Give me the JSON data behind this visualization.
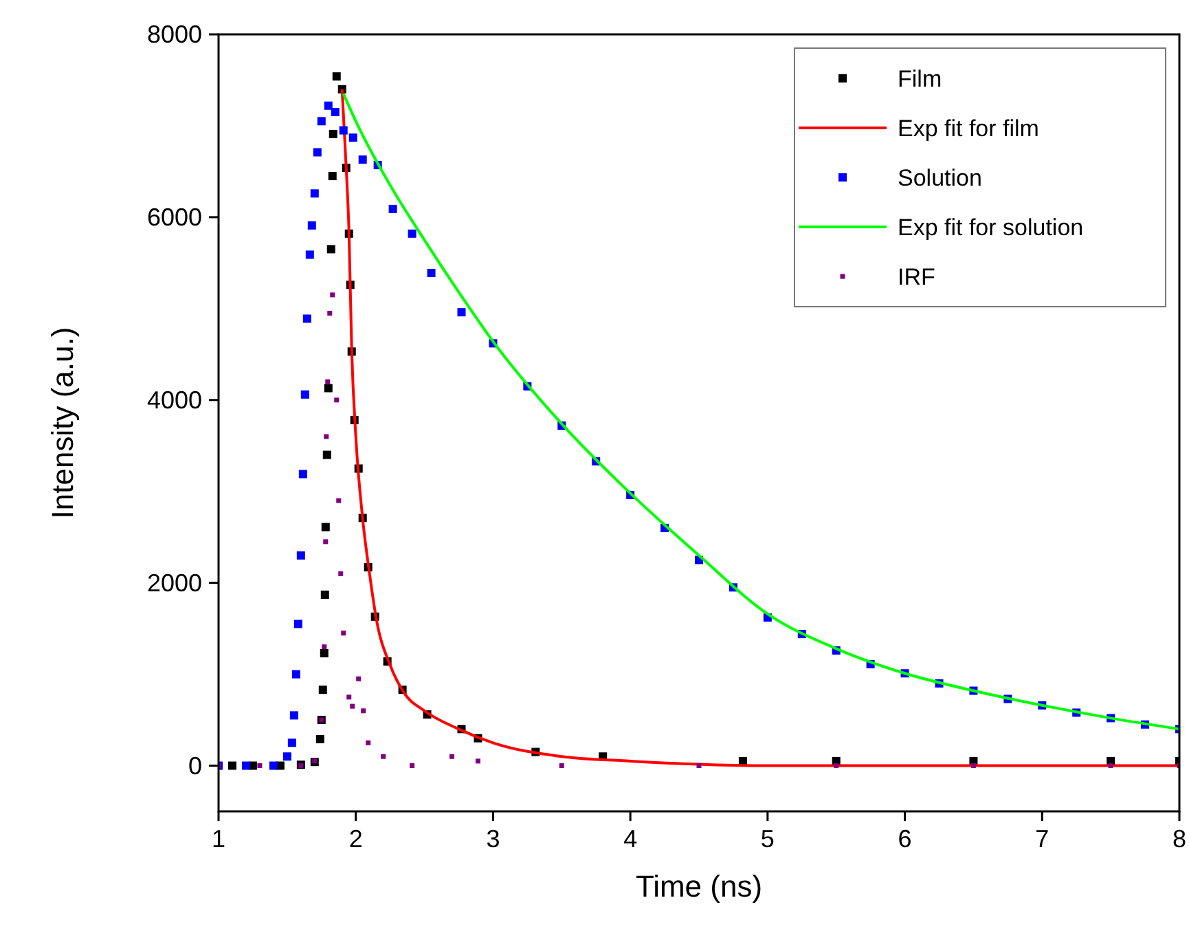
{
  "chart_data": {
    "type": "scatter",
    "xlabel": "Time (ns)",
    "ylabel": "Intensity (a.u.)",
    "xlim": [
      1,
      8
    ],
    "ylim": [
      -500,
      8000
    ],
    "xticks": [
      1,
      2,
      3,
      4,
      5,
      6,
      7,
      8
    ],
    "yticks": [
      0,
      2000,
      4000,
      6000,
      8000
    ],
    "grid": false,
    "legend": "top right",
    "series": [
      {
        "name": "Film",
        "marker": "square",
        "color": "#000000",
        "x": [
          1.1,
          1.25,
          1.45,
          1.6,
          1.7,
          1.74,
          1.75,
          1.76,
          1.77,
          1.775,
          1.78,
          1.79,
          1.8,
          1.82,
          1.83,
          1.835,
          1.86,
          1.9,
          1.93,
          1.95,
          1.96,
          1.97,
          1.99,
          2.02,
          2.05,
          2.09,
          2.14,
          2.23,
          2.34,
          2.52,
          2.77,
          2.89,
          3.31,
          3.8,
          4.82,
          5.5,
          6.5,
          7.5,
          8
        ],
        "values": [
          0,
          0,
          0,
          10,
          40,
          290,
          500,
          830,
          1230,
          1870,
          2610,
          3400,
          4130,
          5650,
          6450,
          6910,
          7540,
          7400,
          6540,
          5820,
          5260,
          4530,
          3780,
          3250,
          2710,
          2170,
          1630,
          1140,
          830,
          560,
          400,
          300,
          150,
          100,
          50,
          50,
          50,
          50,
          50
        ]
      },
      {
        "name": "Exp fit for film",
        "type": "line",
        "color": "#ff0000",
        "x": [
          1.9,
          1.93,
          1.95,
          1.97,
          2.0,
          2.05,
          2.1,
          2.15,
          2.25,
          2.35,
          2.5,
          2.75,
          3,
          3.5,
          4,
          5,
          6,
          8
        ],
        "values": [
          7400,
          6540,
          5850,
          4550,
          3600,
          2700,
          2100,
          1600,
          1100,
          800,
          600,
          400,
          250,
          100,
          50,
          0,
          0,
          0
        ]
      },
      {
        "name": "Solution",
        "marker": "square",
        "color": "#0000ff",
        "x": [
          1,
          1.2,
          1.4,
          1.5,
          1.535,
          1.55,
          1.565,
          1.58,
          1.6,
          1.615,
          1.63,
          1.645,
          1.665,
          1.68,
          1.7,
          1.72,
          1.75,
          1.8,
          1.85,
          1.91,
          1.98,
          2.05,
          2.16,
          2.27,
          2.41,
          2.55,
          2.77,
          3,
          3.25,
          3.5,
          3.75,
          4,
          4.25,
          4.5,
          4.75,
          5,
          5.25,
          5.5,
          5.75,
          6,
          6.25,
          6.5,
          6.75,
          7,
          7.25,
          7.5,
          7.75,
          8
        ],
        "values": [
          0,
          0,
          0,
          100,
          250,
          550,
          1000,
          1550,
          2300,
          3190,
          4060,
          4890,
          5590,
          5910,
          6260,
          6710,
          7050,
          7220,
          7150,
          6950,
          6870,
          6630,
          6570,
          6090,
          5820,
          5390,
          4960,
          4620,
          4150,
          3720,
          3330,
          2960,
          2600,
          2250,
          1950,
          1620,
          1440,
          1260,
          1110,
          1010,
          900,
          820,
          730,
          660,
          580,
          520,
          450,
          400
        ]
      },
      {
        "name": "Exp fit for solution",
        "type": "line",
        "color": "#00ff00",
        "x": [
          1.91,
          2,
          2.25,
          2.5,
          2.75,
          3,
          3.5,
          4,
          4.5,
          5,
          5.5,
          6,
          6.5,
          7,
          7.5,
          8
        ],
        "values": [
          7350,
          7050,
          6350,
          5750,
          5180,
          4640,
          3740,
          2980,
          2300,
          1660,
          1280,
          1010,
          820,
          660,
          520,
          400
        ]
      },
      {
        "name": "IRF",
        "marker": "square",
        "color": "#800080",
        "x": [
          1,
          1.3,
          1.6,
          1.7,
          1.75,
          1.77,
          1.78,
          1.785,
          1.795,
          1.81,
          1.83,
          1.86,
          1.875,
          1.89,
          1.91,
          1.95,
          1.975,
          2.02,
          2.055,
          2.09,
          2.2,
          2.41,
          2.7,
          2.89,
          3.5,
          4.5,
          5.5,
          6.5,
          7.5,
          8
        ],
        "values": [
          0,
          0,
          0,
          50,
          500,
          1300,
          2450,
          3600,
          4200,
          4950,
          5150,
          4000,
          2900,
          2100,
          1450,
          750,
          650,
          950,
          600,
          250,
          100,
          0,
          100,
          50,
          0,
          0,
          0,
          0,
          0,
          0
        ]
      }
    ]
  }
}
